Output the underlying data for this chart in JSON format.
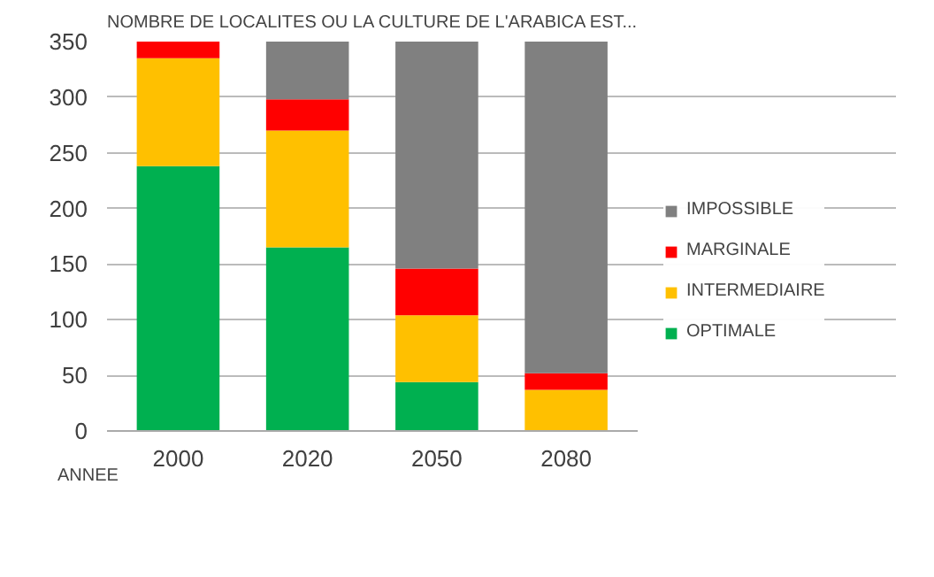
{
  "chart_data": {
    "type": "bar",
    "title": "NOMBRE DE LOCALITES OU LA CULTURE DE L'ARABICA EST...",
    "xlabel": "ANNEE",
    "categories": [
      "2000",
      "2020",
      "2050",
      "2080"
    ],
    "stacked": true,
    "series": [
      {
        "name": "OPTIMALE",
        "color": "#00b050",
        "values": [
          238,
          165,
          44,
          0
        ]
      },
      {
        "name": "INTERMEDIAIRE",
        "color": "#ffc000",
        "values": [
          97,
          105,
          60,
          37
        ]
      },
      {
        "name": "MARGINALE",
        "color": "#ff0000",
        "values": [
          15,
          28,
          42,
          15
        ]
      },
      {
        "name": "IMPOSSIBLE",
        "color": "#808080",
        "values": [
          0,
          52,
          204,
          298
        ]
      }
    ],
    "ylim": [
      0,
      350
    ],
    "yticks": [
      0,
      50,
      100,
      150,
      200,
      250,
      300,
      350
    ],
    "grid": "y",
    "legend": "right"
  }
}
